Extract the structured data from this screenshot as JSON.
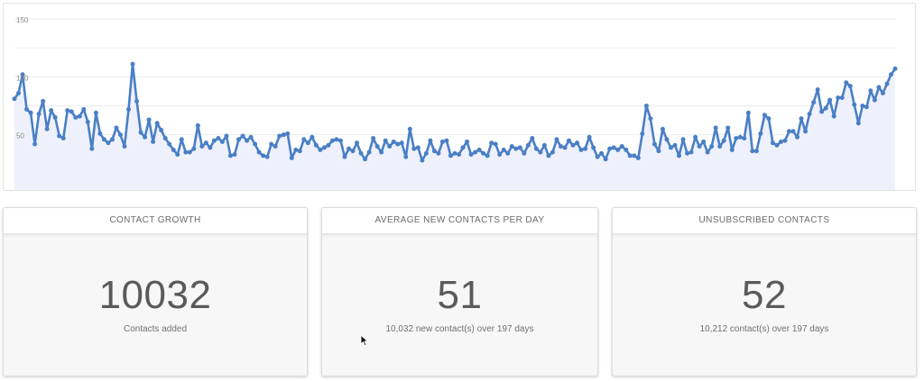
{
  "chart_data": {
    "type": "line",
    "y_ticks": [
      {
        "value": 50,
        "label": "50"
      },
      {
        "value": 100,
        "label": "100"
      },
      {
        "value": 150,
        "label": "150"
      }
    ],
    "ylim": [
      0,
      150
    ],
    "grid": true,
    "series_color": "#4a7fc6",
    "fill_color": "#eef1fb",
    "values": [
      81,
      86,
      102,
      72,
      69,
      42,
      68,
      79,
      55,
      71,
      65,
      49,
      47,
      71,
      70,
      65,
      66,
      72,
      61,
      38,
      69,
      51,
      46,
      43,
      46,
      56,
      50,
      40,
      72,
      111,
      79,
      52,
      48,
      63,
      44,
      60,
      54,
      47,
      42,
      37,
      33,
      46,
      35,
      35,
      38,
      58,
      40,
      43,
      39,
      45,
      47,
      44,
      49,
      32,
      33,
      46,
      49,
      45,
      48,
      42,
      35,
      32,
      31,
      42,
      40,
      49,
      50,
      51,
      30,
      37,
      36,
      46,
      43,
      48,
      41,
      37,
      39,
      41,
      45,
      46,
      45,
      31,
      38,
      36,
      43,
      34,
      29,
      35,
      47,
      40,
      35,
      45,
      40,
      44,
      42,
      43,
      31,
      55,
      38,
      39,
      28,
      34,
      45,
      36,
      34,
      44,
      45,
      32,
      34,
      33,
      39,
      44,
      33,
      35,
      37,
      34,
      32,
      43,
      42,
      33,
      37,
      34,
      40,
      38,
      39,
      34,
      41,
      47,
      38,
      35,
      41,
      32,
      35,
      46,
      40,
      39,
      45,
      41,
      43,
      37,
      38,
      48,
      39,
      31,
      34,
      29,
      38,
      39,
      37,
      40,
      37,
      32,
      32,
      30,
      51,
      75,
      64,
      42,
      36,
      55,
      46,
      39,
      41,
      32,
      46,
      34,
      35,
      48,
      40,
      44,
      35,
      40,
      56,
      40,
      45,
      56,
      37,
      47,
      48,
      47,
      69,
      36,
      36,
      51,
      67,
      64,
      43,
      41,
      44,
      45,
      53,
      53,
      48,
      64,
      53,
      68,
      78,
      89,
      70,
      73,
      80,
      66,
      82,
      82,
      95,
      92,
      76,
      60,
      75,
      74,
      88,
      80,
      91,
      86,
      94,
      102,
      107
    ]
  },
  "cards": [
    {
      "title": "CONTACT GROWTH",
      "value": "10032",
      "caption": "Contacts added"
    },
    {
      "title": "AVERAGE NEW CONTACTS PER DAY",
      "value": "51",
      "caption": "10,032 new contact(s) over 197 days"
    },
    {
      "title": "UNSUBSCRIBED CONTACTS",
      "value": "52",
      "caption": "10,212 contact(s) over 197 days"
    }
  ],
  "icons": {
    "cursor": "mouse-pointer-icon"
  }
}
